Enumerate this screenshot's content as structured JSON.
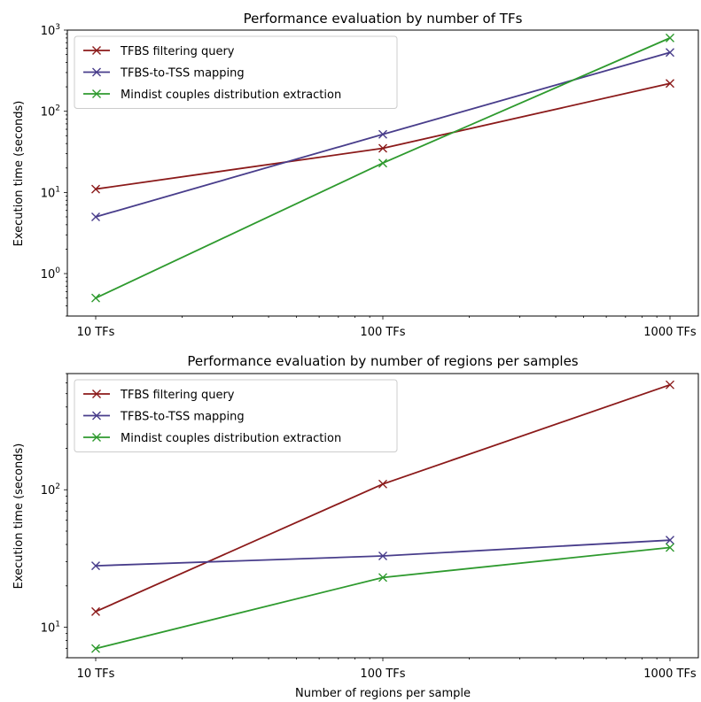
{
  "chart_data": [
    {
      "type": "line",
      "title": "Performance evaluation by number of TFs",
      "xlabel": "",
      "ylabel": "Execution time (seconds)",
      "x_scale": "log",
      "y_scale": "log",
      "x": [
        10,
        100,
        1000
      ],
      "x_tick_labels": [
        "10 TFs",
        "100 TFs",
        "1000 TFs"
      ],
      "ylim": [
        0.3,
        1000
      ],
      "y_tick_labels": [
        {
          "value": 1,
          "base": "10",
          "exp": "0"
        },
        {
          "value": 10,
          "base": "10",
          "exp": "1"
        },
        {
          "value": 100,
          "base": "10",
          "exp": "2"
        },
        {
          "value": 1000,
          "base": "10",
          "exp": "3"
        }
      ],
      "grid": false,
      "legend_position": "top-left",
      "series": [
        {
          "name": "TFBS filtering query",
          "color": "#8b1a1a",
          "values": [
            11,
            35,
            220
          ]
        },
        {
          "name": "TFBS-to-TSS mapping",
          "color": "#483d8b",
          "values": [
            5,
            52,
            530
          ]
        },
        {
          "name": "Mindist couples distribution extraction",
          "color": "#2e9a2e",
          "values": [
            0.5,
            23,
            800
          ]
        }
      ]
    },
    {
      "type": "line",
      "title": "Performance evaluation by number of regions per samples",
      "xlabel": "Number of regions per sample",
      "ylabel": "Execution time (seconds)",
      "x_scale": "log",
      "y_scale": "log",
      "x": [
        10,
        100,
        1000
      ],
      "x_tick_labels": [
        "10 TFs",
        "100 TFs",
        "1000 TFs"
      ],
      "ylim": [
        6.0,
        700
      ],
      "y_tick_labels": [
        {
          "value": 10,
          "base": "10",
          "exp": "1"
        },
        {
          "value": 100,
          "base": "10",
          "exp": "2"
        }
      ],
      "grid": false,
      "legend_position": "top-left",
      "series": [
        {
          "name": "TFBS filtering query",
          "color": "#8b1a1a",
          "values": [
            13,
            110,
            580
          ]
        },
        {
          "name": "TFBS-to-TSS mapping",
          "color": "#483d8b",
          "values": [
            28,
            33,
            43
          ]
        },
        {
          "name": "Mindist couples distribution extraction",
          "color": "#2e9a2e",
          "values": [
            7,
            23,
            38
          ]
        }
      ]
    }
  ]
}
